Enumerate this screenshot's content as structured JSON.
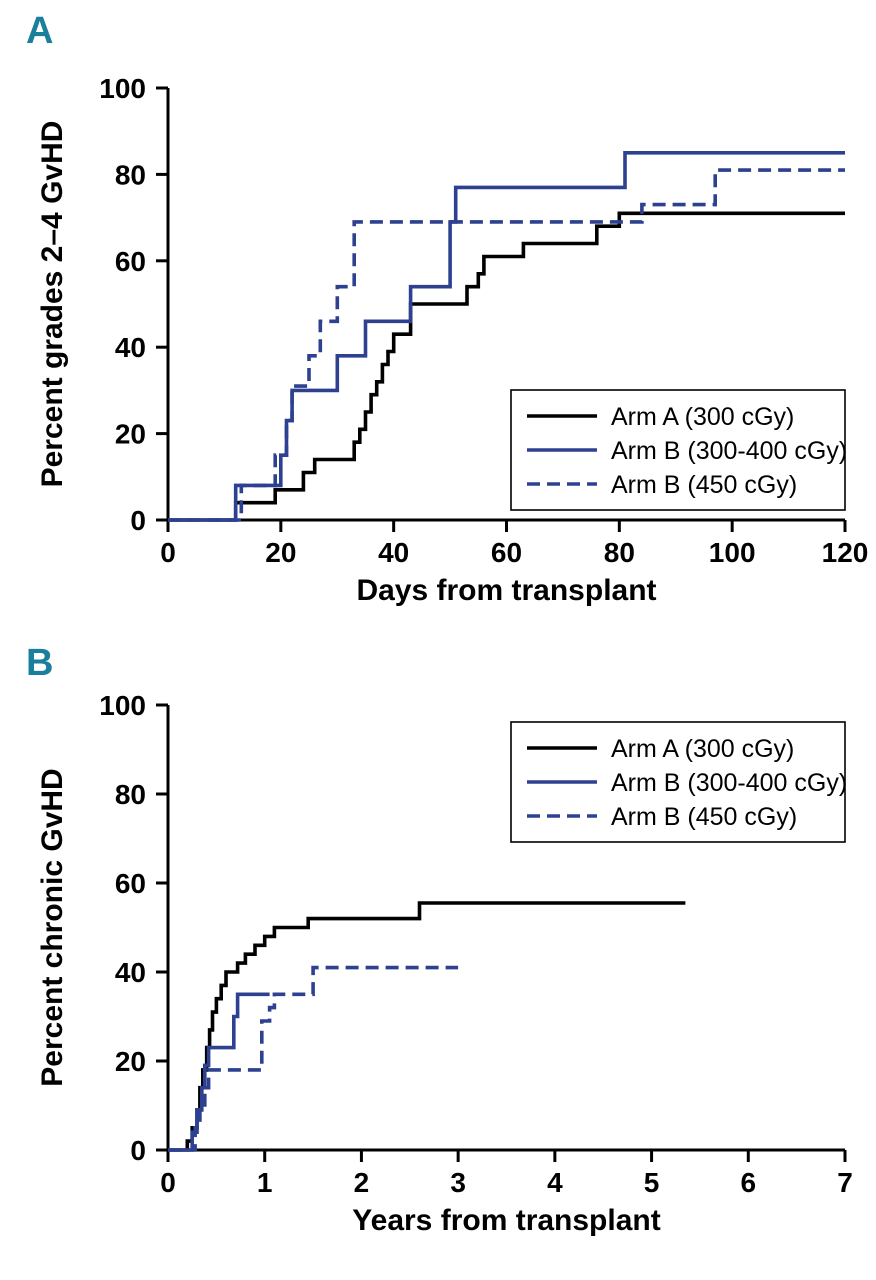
{
  "figure": {
    "panel_a_label": "A",
    "panel_b_label": "B"
  },
  "colors": {
    "panel_label": "#1a7f9c",
    "black_series": "#000000",
    "blue_series": "#2e4090",
    "axis": "#000000",
    "legend_border": "#000000",
    "background": "#ffffff"
  },
  "chart_data": [
    {
      "type": "line",
      "panel": "A",
      "title": "",
      "xlabel": "Days from transplant",
      "ylabel": "Percent grades 2–4 GvHD",
      "xlim": [
        0,
        120
      ],
      "ylim": [
        0,
        100
      ],
      "xticks": [
        0,
        20,
        40,
        60,
        80,
        100,
        120
      ],
      "yticks": [
        0,
        20,
        40,
        60,
        80,
        100
      ],
      "grid": false,
      "legend_pos": "bottom-right",
      "step_mode": "after",
      "series": [
        {
          "name": "Arm A (300 cGy)",
          "color": "#000000",
          "dash": false,
          "points": [
            [
              0,
              0
            ],
            [
              12,
              4
            ],
            [
              19,
              7
            ],
            [
              24,
              11
            ],
            [
              26,
              14
            ],
            [
              33,
              18
            ],
            [
              34,
              21
            ],
            [
              35,
              25
            ],
            [
              36,
              29
            ],
            [
              37,
              32
            ],
            [
              38,
              36
            ],
            [
              39,
              39
            ],
            [
              40,
              43
            ],
            [
              43,
              50
            ],
            [
              53,
              54
            ],
            [
              55,
              57
            ],
            [
              56,
              61
            ],
            [
              63,
              64
            ],
            [
              76,
              68
            ],
            [
              80,
              71
            ],
            [
              120,
              71
            ]
          ]
        },
        {
          "name": "Arm B (300-400 cGy)",
          "color": "#2e4090",
          "dash": false,
          "points": [
            [
              0,
              0
            ],
            [
              12,
              8
            ],
            [
              20,
              15
            ],
            [
              21,
              23
            ],
            [
              22,
              30
            ],
            [
              30,
              38
            ],
            [
              35,
              46
            ],
            [
              43,
              54
            ],
            [
              50,
              69
            ],
            [
              51,
              77
            ],
            [
              81,
              85
            ],
            [
              120,
              85
            ]
          ]
        },
        {
          "name": "Arm B (450 cGy)",
          "color": "#2e4090",
          "dash": true,
          "points": [
            [
              0,
              0
            ],
            [
              13,
              8
            ],
            [
              19,
              15
            ],
            [
              21,
              23
            ],
            [
              22,
              31
            ],
            [
              25,
              38
            ],
            [
              27,
              46
            ],
            [
              30,
              54
            ],
            [
              33,
              69
            ],
            [
              84,
              73
            ],
            [
              97,
              81
            ],
            [
              120,
              81
            ]
          ]
        }
      ]
    },
    {
      "type": "line",
      "panel": "B",
      "title": "",
      "xlabel": "Years from transplant",
      "ylabel": "Percent chronic GvHD",
      "xlim": [
        0,
        7
      ],
      "ylim": [
        0,
        100
      ],
      "xticks": [
        0,
        1,
        2,
        3,
        4,
        5,
        6,
        7
      ],
      "yticks": [
        0,
        20,
        40,
        60,
        80,
        100
      ],
      "grid": false,
      "legend_pos": "top-right",
      "step_mode": "after",
      "series": [
        {
          "name": "Arm A (300 cGy)",
          "color": "#000000",
          "dash": false,
          "points": [
            [
              0,
              0
            ],
            [
              0.2,
              2
            ],
            [
              0.25,
              5
            ],
            [
              0.3,
              9
            ],
            [
              0.33,
              14
            ],
            [
              0.36,
              18
            ],
            [
              0.4,
              23
            ],
            [
              0.43,
              27
            ],
            [
              0.46,
              31
            ],
            [
              0.5,
              34
            ],
            [
              0.55,
              37
            ],
            [
              0.6,
              40
            ],
            [
              0.72,
              42
            ],
            [
              0.8,
              44
            ],
            [
              0.9,
              46
            ],
            [
              1.0,
              48
            ],
            [
              1.1,
              50
            ],
            [
              1.45,
              52
            ],
            [
              2.6,
              55.5
            ],
            [
              5.35,
              55.5
            ]
          ]
        },
        {
          "name": "Arm B (300-400 cGy)",
          "color": "#2e4090",
          "dash": false,
          "points": [
            [
              0,
              0
            ],
            [
              0.25,
              4
            ],
            [
              0.3,
              9
            ],
            [
              0.35,
              14
            ],
            [
              0.38,
              19
            ],
            [
              0.42,
              23
            ],
            [
              0.68,
              30
            ],
            [
              0.72,
              35
            ],
            [
              1.05,
              35
            ]
          ]
        },
        {
          "name": "Arm B (450 cGy)",
          "color": "#2e4090",
          "dash": true,
          "points": [
            [
              0,
              0
            ],
            [
              0.28,
              5
            ],
            [
              0.33,
              9
            ],
            [
              0.38,
              14
            ],
            [
              0.42,
              18
            ],
            [
              0.97,
              29
            ],
            [
              1.05,
              32
            ],
            [
              1.1,
              35
            ],
            [
              1.5,
              41
            ],
            [
              3.0,
              41
            ]
          ]
        }
      ]
    }
  ]
}
